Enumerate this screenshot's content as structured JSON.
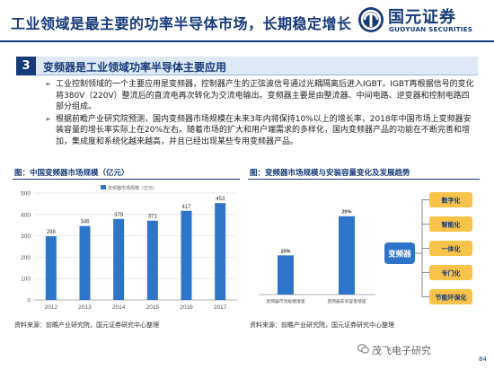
{
  "header": {
    "title": "工业领域是最主要的功率半导体市场，长期稳定增长",
    "logo_cn": "国元证券",
    "logo_en": "GUOYUAN SECURITIES"
  },
  "section": {
    "number": "3",
    "title": "变频器是工业领域功率半导体主要应用"
  },
  "bullets": [
    "工业控制领域的一个主要应用是变频器，控制器产生的正弦波信号通过光耦隔离后进入IGBT，IGBT再根据信号的变化将380V（220V）整流后的直流电再次转化为交流电输出。变频器主要是由整流器、中间电路、逆变器和控制电路四部分组成。",
    "根据前瞻产业研究院预测，国内变频器市场规模在未来3年内将保持10%以上的增长率，2018年中国市场上变频器安装容量的增长率实际上在20%左右。随着市场的扩大和用户端需求的多样化，国内变频器产品的功能在不断完善和增加，集成度和系统化越来越高，并且已经出现某些专用变频器产品。"
  ],
  "chart1": {
    "caption": "图：中国变频器市场规模（亿元）",
    "source": "资料来源：前瞻产业研究院，国元证券研究中心整理"
  },
  "chart2": {
    "caption": "图：变频器市场规模与安装容量变化及发展趋势",
    "source": "资料来源：前瞻产业研究院，国元证券研究中心整理"
  },
  "chart_data": [
    {
      "type": "bar",
      "title": "",
      "legend": "变频器市场规模（亿元）",
      "categories": [
        "2012",
        "2013",
        "2014",
        "2015",
        "2016",
        "2017"
      ],
      "values": [
        298,
        346,
        379,
        371,
        417,
        453
      ],
      "ylim": [
        0,
        500
      ],
      "yticks": [
        0,
        100,
        200,
        300,
        400,
        500
      ],
      "color": "#2e75c9",
      "grid": true
    },
    {
      "type": "bar",
      "title": "",
      "categories": [
        "变频器市场规模增速",
        "变频器安装容量增速"
      ],
      "values": [
        10,
        20
      ],
      "value_labels": [
        "10%",
        "20%"
      ],
      "color": "#2e75c9"
    }
  ],
  "diagram": {
    "center": "变频器",
    "trends": [
      "数字化",
      "智能化",
      "一体化",
      "专门化",
      "节能环保化"
    ],
    "center_color": "#2e75c9",
    "box_color": "#f7c34a"
  },
  "watermark": "茂飞电子研究",
  "page_number": "84"
}
